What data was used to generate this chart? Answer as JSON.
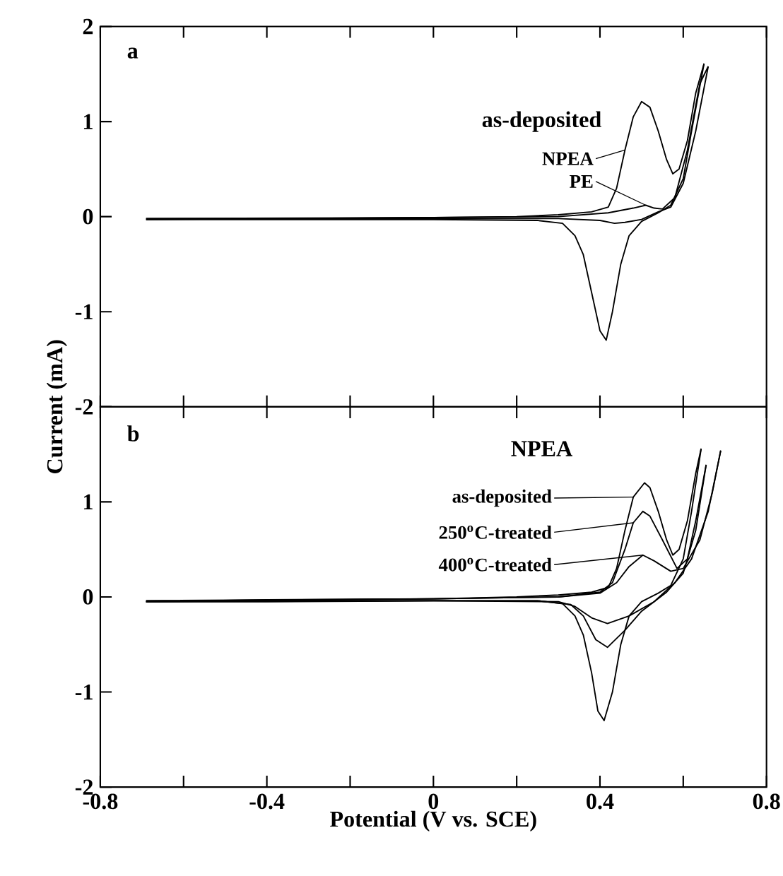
{
  "chart_data": [
    {
      "type": "line",
      "ylabel": "Current (mA)",
      "xlim": [
        -0.8,
        0.8
      ],
      "ylim": [
        -2,
        2
      ],
      "xticks": [
        -0.8,
        -0.6,
        -0.4,
        -0.2,
        0,
        0.2,
        0.4,
        0.6,
        0.8
      ],
      "yticks": [
        -2,
        -1,
        0,
        1,
        2
      ],
      "tick_labels": "y",
      "marker": "none",
      "line_style": "solid",
      "legend": "right",
      "annotations": [
        "a",
        "as-deposited"
      ],
      "series": [
        {
          "name": "NPEA",
          "color": "#000000",
          "x": [
            -0.69,
            -0.4,
            0,
            0.2,
            0.3,
            0.38,
            0.42,
            0.44,
            0.46,
            0.48,
            0.5,
            0.52,
            0.54,
            0.56,
            0.575,
            0.59,
            0.61,
            0.63,
            0.65
          ],
          "values": [
            -0.03,
            -0.02,
            -0.01,
            0.0,
            0.02,
            0.05,
            0.1,
            0.3,
            0.7,
            1.05,
            1.21,
            1.15,
            0.9,
            0.6,
            0.45,
            0.5,
            0.8,
            1.3,
            1.61
          ]
        },
        {
          "color": "#000000",
          "x": [
            -0.69,
            -0.4,
            0,
            0.25,
            0.31,
            0.34,
            0.36,
            0.38,
            0.4,
            0.415,
            0.43,
            0.45,
            0.47,
            0.5,
            0.54,
            0.57,
            0.6,
            0.62,
            0.65
          ],
          "values": [
            -0.03,
            -0.03,
            -0.03,
            -0.04,
            -0.07,
            -0.2,
            -0.4,
            -0.8,
            -1.2,
            -1.3,
            -1.0,
            -0.5,
            -0.2,
            -0.05,
            0.04,
            0.12,
            0.4,
            0.9,
            1.61
          ]
        },
        {
          "name": "PE",
          "color": "#000000",
          "x": [
            -0.69,
            0,
            0.3,
            0.42,
            0.48,
            0.51,
            0.53,
            0.55,
            0.58,
            0.61,
            0.64,
            0.66
          ],
          "values": [
            -0.02,
            -0.01,
            0.0,
            0.04,
            0.09,
            0.12,
            0.09,
            0.08,
            0.2,
            0.7,
            1.4,
            1.58
          ]
        },
        {
          "color": "#000000",
          "x": [
            -0.69,
            0,
            0.3,
            0.4,
            0.435,
            0.46,
            0.5,
            0.54,
            0.57,
            0.6,
            0.63,
            0.66
          ],
          "values": [
            -0.02,
            -0.02,
            -0.02,
            -0.04,
            -0.07,
            -0.06,
            -0.03,
            0.05,
            0.1,
            0.35,
            0.9,
            1.58
          ]
        }
      ]
    },
    {
      "type": "line",
      "xlabel": "Potential (V vs. SCE)",
      "xlim": [
        -0.8,
        0.8
      ],
      "ylim": [
        -2,
        2
      ],
      "xticks": [
        -0.8,
        {
          "value": -0.6,
          "label": null
        },
        -0.4,
        {
          "value": -0.2,
          "label": null
        },
        0,
        {
          "value": 0.2,
          "label": null
        },
        0.4,
        {
          "value": 0.6,
          "label": null
        },
        0.8
      ],
      "yticks": [
        -2,
        -1,
        0,
        1,
        {
          "value": 2,
          "label": null
        }
      ],
      "marker": "none",
      "line_style": "solid",
      "legend": "right",
      "annotations": [
        "b",
        "NPEA"
      ],
      "series": [
        {
          "name": "as-deposited",
          "color": "#000000",
          "x": [
            -0.69,
            -0.4,
            0,
            0.2,
            0.3,
            0.38,
            0.42,
            0.44,
            0.46,
            0.48,
            0.507,
            0.52,
            0.54,
            0.56,
            0.575,
            0.59,
            0.61,
            0.63,
            0.643
          ],
          "values": [
            -0.05,
            -0.03,
            -0.02,
            0.0,
            0.02,
            0.05,
            0.1,
            0.3,
            0.7,
            1.05,
            1.2,
            1.15,
            0.9,
            0.6,
            0.44,
            0.5,
            0.8,
            1.3,
            1.56
          ]
        },
        {
          "color": "#000000",
          "x": [
            -0.69,
            -0.4,
            0,
            0.25,
            0.31,
            0.34,
            0.36,
            0.38,
            0.395,
            0.41,
            0.43,
            0.45,
            0.47,
            0.5,
            0.54,
            0.57,
            0.6,
            0.62,
            0.643
          ],
          "values": [
            -0.05,
            -0.05,
            -0.04,
            -0.04,
            -0.07,
            -0.2,
            -0.4,
            -0.8,
            -1.2,
            -1.3,
            -1.0,
            -0.5,
            -0.2,
            -0.05,
            0.04,
            0.12,
            0.4,
            0.9,
            1.56
          ]
        },
        {
          "name": "250$^{o}$C-treated",
          "color": "#000000",
          "x": [
            -0.69,
            0,
            0.3,
            0.4,
            0.43,
            0.46,
            0.48,
            0.503,
            0.52,
            0.55,
            0.585,
            0.61,
            0.63,
            0.655
          ],
          "values": [
            -0.05,
            -0.02,
            0.0,
            0.05,
            0.15,
            0.5,
            0.78,
            0.9,
            0.85,
            0.6,
            0.3,
            0.4,
            0.8,
            1.39
          ]
        },
        {
          "color": "#000000",
          "x": [
            -0.69,
            0,
            0.25,
            0.33,
            0.36,
            0.39,
            0.418,
            0.46,
            0.5,
            0.56,
            0.6,
            0.63,
            0.655
          ],
          "values": [
            -0.05,
            -0.04,
            -0.04,
            -0.08,
            -0.2,
            -0.45,
            -0.53,
            -0.35,
            -0.15,
            0.05,
            0.25,
            0.7,
            1.39
          ]
        },
        {
          "name": "400$^{o}$C-treated",
          "color": "#000000",
          "x": [
            -0.69,
            0,
            0.3,
            0.4,
            0.44,
            0.47,
            0.503,
            0.53,
            0.57,
            0.6,
            0.64,
            0.67,
            0.69
          ],
          "values": [
            -0.04,
            -0.02,
            0.0,
            0.04,
            0.15,
            0.32,
            0.44,
            0.38,
            0.27,
            0.3,
            0.6,
            1.1,
            1.54
          ]
        },
        {
          "color": "#000000",
          "x": [
            -0.69,
            0,
            0.3,
            0.34,
            0.38,
            0.418,
            0.47,
            0.53,
            0.58,
            0.62,
            0.66,
            0.69
          ],
          "values": [
            -0.04,
            -0.04,
            -0.05,
            -0.1,
            -0.22,
            -0.28,
            -0.2,
            -0.05,
            0.15,
            0.4,
            0.9,
            1.54
          ]
        }
      ]
    }
  ]
}
